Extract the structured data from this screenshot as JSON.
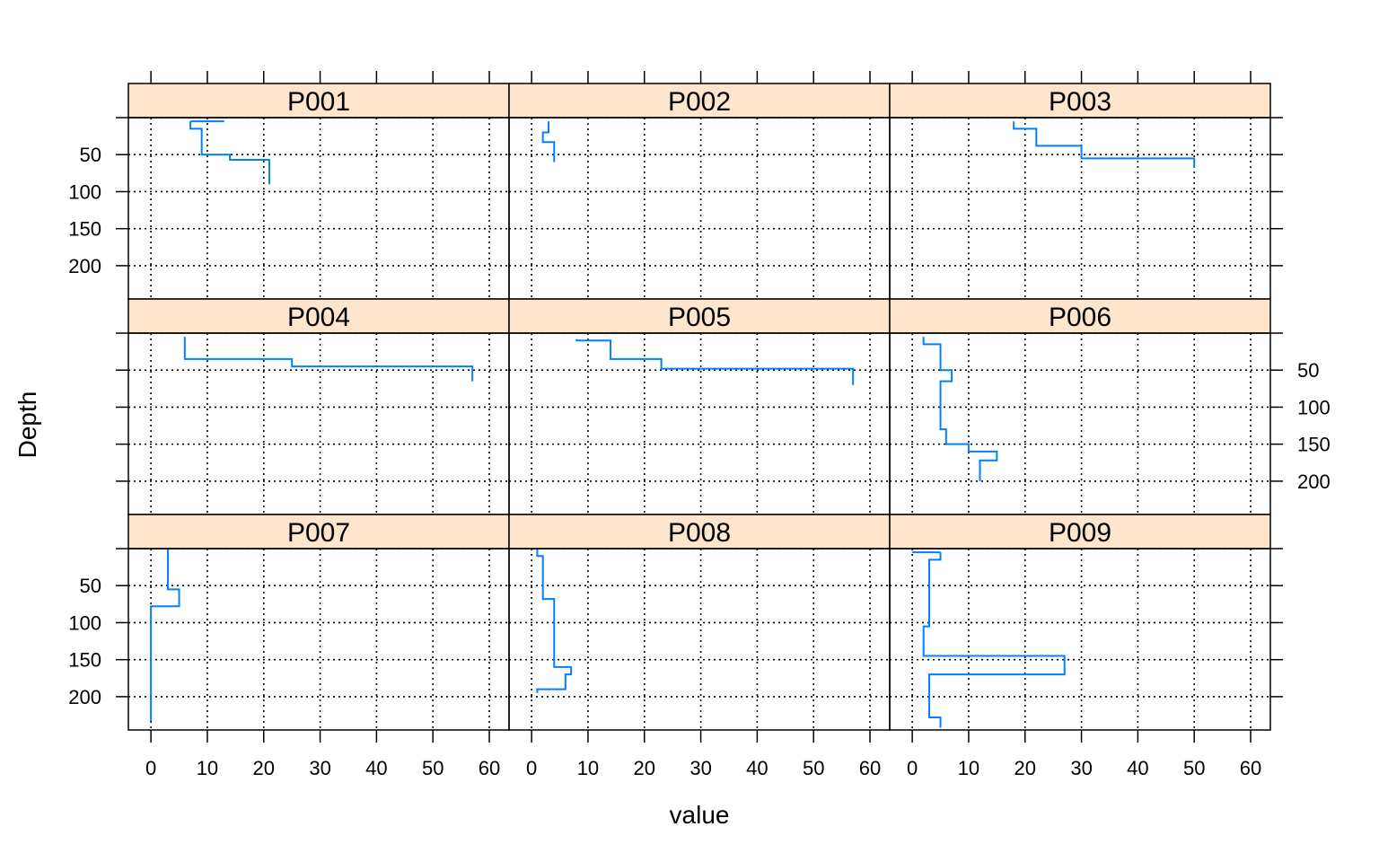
{
  "chart_data": {
    "type": "line",
    "layout": "lattice-3x3",
    "xlabel": "value",
    "ylabel": "Depth",
    "xlim": [
      -4,
      63.5
    ],
    "ylim": [
      0,
      245
    ],
    "y_reversed": true,
    "x_ticks": [
      0,
      10,
      20,
      30,
      40,
      50,
      60
    ],
    "y_ticks": [
      50,
      100,
      150,
      200
    ],
    "grid": true,
    "colors": {
      "line": "#0080ff",
      "strip_bg": "#ffe5cc",
      "frame": "#000000",
      "grid": "#000000"
    },
    "panels": [
      {
        "name": "P001",
        "profile": [
          {
            "top": 5,
            "bottom": 5,
            "value": [
              7,
              13
            ]
          },
          {
            "top": 5,
            "bottom": 15,
            "value": 7
          },
          {
            "top": 15,
            "bottom": 50,
            "value": 9
          },
          {
            "top": 50,
            "bottom": 57,
            "value": 14
          },
          {
            "top": 57,
            "bottom": 90,
            "value": 21
          }
        ]
      },
      {
        "name": "P002",
        "profile": [
          {
            "top": 5,
            "bottom": 20,
            "value": 3
          },
          {
            "top": 20,
            "bottom": 33,
            "value": 2
          },
          {
            "top": 33,
            "bottom": 60,
            "value": 4
          }
        ]
      },
      {
        "name": "P003",
        "profile": [
          {
            "top": 5,
            "bottom": 15,
            "value": 18
          },
          {
            "top": 15,
            "bottom": 38,
            "value": 22
          },
          {
            "top": 38,
            "bottom": 55,
            "value": 30
          },
          {
            "top": 55,
            "bottom": 68,
            "value": 50
          }
        ]
      },
      {
        "name": "P004",
        "profile": [
          {
            "top": 5,
            "bottom": 35,
            "value": 6
          },
          {
            "top": 35,
            "bottom": 45,
            "value": 25
          },
          {
            "top": 45,
            "bottom": 65,
            "value": 57
          }
        ]
      },
      {
        "name": "P005",
        "profile": [
          {
            "top": 8,
            "bottom": 10,
            "value": 8
          },
          {
            "top": 10,
            "bottom": 35,
            "value": 14
          },
          {
            "top": 35,
            "bottom": 48,
            "value": 23
          },
          {
            "top": 48,
            "bottom": 70,
            "value": 57
          }
        ]
      },
      {
        "name": "P006",
        "profile": [
          {
            "top": 5,
            "bottom": 15,
            "value": 2
          },
          {
            "top": 15,
            "bottom": 50,
            "value": 5
          },
          {
            "top": 50,
            "bottom": 65,
            "value": 7
          },
          {
            "top": 65,
            "bottom": 130,
            "value": 5
          },
          {
            "top": 130,
            "bottom": 150,
            "value": 6
          },
          {
            "top": 150,
            "bottom": 160,
            "value": 10
          },
          {
            "top": 160,
            "bottom": 172,
            "value": 15
          },
          {
            "top": 172,
            "bottom": 200,
            "value": 12
          }
        ]
      },
      {
        "name": "P007",
        "profile": [
          {
            "top": 0,
            "bottom": 55,
            "value": 3
          },
          {
            "top": 55,
            "bottom": 78,
            "value": 5
          },
          {
            "top": 78,
            "bottom": 233,
            "value": 0
          }
        ]
      },
      {
        "name": "P008",
        "profile": [
          {
            "top": 0,
            "bottom": 10,
            "value": 1
          },
          {
            "top": 10,
            "bottom": 30,
            "value": 2
          },
          {
            "top": 30,
            "bottom": 68,
            "value": 2
          },
          {
            "top": 68,
            "bottom": 160,
            "value": 4
          },
          {
            "top": 160,
            "bottom": 170,
            "value": 7
          },
          {
            "top": 170,
            "bottom": 190,
            "value": 6
          },
          {
            "top": 190,
            "bottom": 195,
            "value": 1
          }
        ]
      },
      {
        "name": "P009",
        "profile": [
          {
            "top": 5,
            "bottom": 5,
            "value": [
              0,
              5
            ]
          },
          {
            "top": 5,
            "bottom": 15,
            "value": 5
          },
          {
            "top": 15,
            "bottom": 105,
            "value": 3
          },
          {
            "top": 105,
            "bottom": 145,
            "value": 2
          },
          {
            "top": 145,
            "bottom": 170,
            "value": 27
          },
          {
            "top": 170,
            "bottom": 228,
            "value": 3
          },
          {
            "top": 228,
            "bottom": 242,
            "value": 5
          }
        ]
      }
    ]
  }
}
